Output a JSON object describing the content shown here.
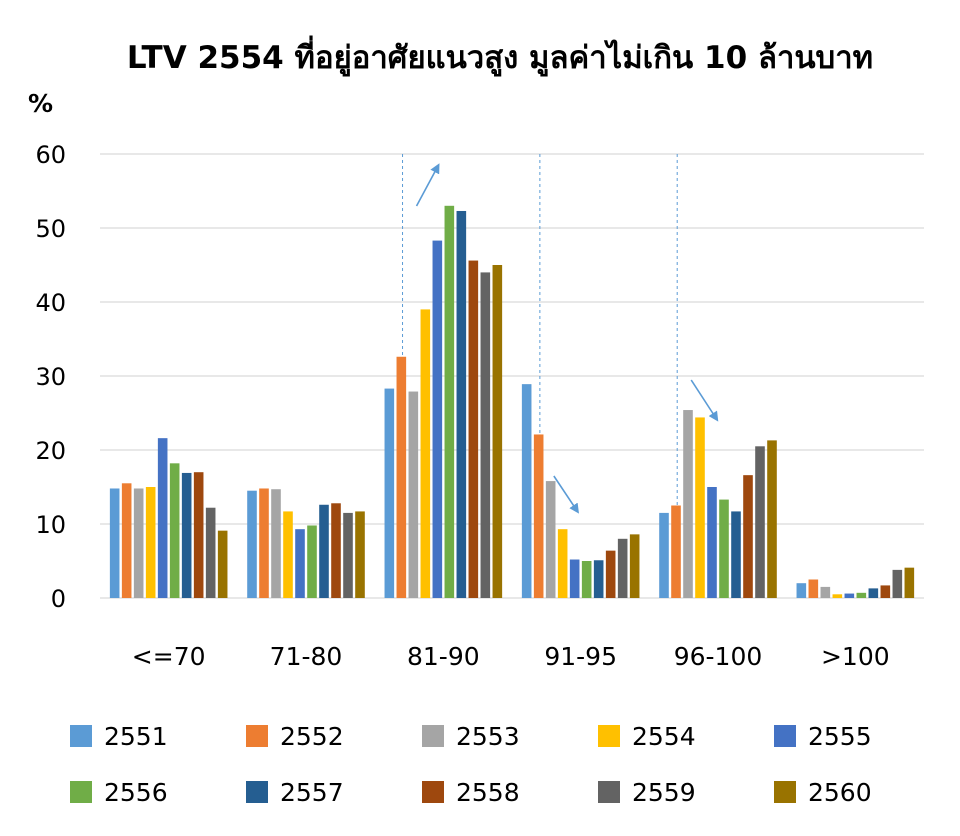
{
  "chart_data": {
    "type": "bar",
    "title": "LTV 2554 ที่อยู่อาศัยแนวสูง มูลค่าไม่เกิน 10 ล้านบาท",
    "ylabel": "%",
    "xlabel": "",
    "ylim": [
      0,
      60
    ],
    "yticks": [
      0,
      10,
      20,
      30,
      40,
      50,
      60
    ],
    "grid": true,
    "legend_position": "bottom",
    "categories": [
      "<=70",
      "71-80",
      "81-90",
      "91-95",
      "96-100",
      ">100"
    ],
    "series": [
      {
        "name": "2551",
        "color": "#5B9BD5",
        "values": [
          14.8,
          14.5,
          28.3,
          28.9,
          11.5,
          2.0
        ]
      },
      {
        "name": "2552",
        "color": "#ED7D31",
        "values": [
          15.5,
          14.8,
          32.6,
          22.1,
          12.5,
          2.5
        ]
      },
      {
        "name": "2553",
        "color": "#A5A5A5",
        "values": [
          14.8,
          14.7,
          27.9,
          15.8,
          25.4,
          1.5
        ]
      },
      {
        "name": "2554",
        "color": "#FFC000",
        "values": [
          15.0,
          11.7,
          39.0,
          9.3,
          24.4,
          0.5
        ]
      },
      {
        "name": "2555",
        "color": "#4472C4",
        "values": [
          21.6,
          9.3,
          48.3,
          5.2,
          15.0,
          0.6
        ]
      },
      {
        "name": "2556",
        "color": "#70AD47",
        "values": [
          18.2,
          9.8,
          53.0,
          5.0,
          13.3,
          0.7
        ]
      },
      {
        "name": "2557",
        "color": "#255E91",
        "values": [
          16.9,
          12.6,
          52.3,
          5.1,
          11.7,
          1.3
        ]
      },
      {
        "name": "2558",
        "color": "#9E480E",
        "values": [
          17.0,
          12.8,
          45.6,
          6.4,
          16.6,
          1.7
        ]
      },
      {
        "name": "2559",
        "color": "#636363",
        "values": [
          12.2,
          11.5,
          44.0,
          8.0,
          20.5,
          3.8
        ]
      },
      {
        "name": "2560",
        "color": "#997300",
        "values": [
          9.1,
          11.7,
          45.0,
          8.6,
          21.3,
          4.1
        ]
      }
    ],
    "annotations": [
      {
        "category": "81-90",
        "direction": "up"
      },
      {
        "category": "91-95",
        "direction": "down"
      },
      {
        "category": "96-100",
        "direction": "down"
      }
    ],
    "annotation_color": "#5B9BD5"
  }
}
